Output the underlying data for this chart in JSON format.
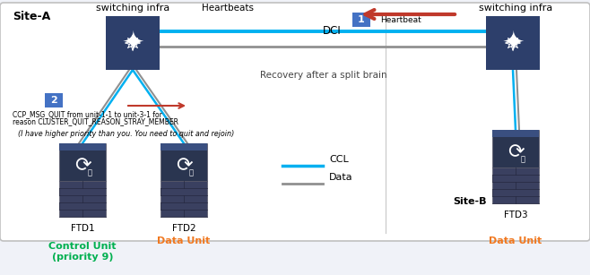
{
  "background": "#f0f2f8",
  "outer_box_color": "#c0c0c0",
  "site_a_label": "Site-A",
  "site_b_label": "Site-B",
  "sw_infra_label": "switching infra",
  "heartbeats_label": "Heartbeats",
  "dci_label": "DCI",
  "heartbeat_label": "Heartbeat",
  "recovery_label": "Recovery after a split brain",
  "ftd1_label": "FTD1",
  "ftd2_label": "FTD2",
  "ftd3_label": "FTD3",
  "control_unit_label": "Control Unit\n(priority 9)",
  "data_unit_label": "Data Unit",
  "ccl_label": "CCL",
  "data_label": "Data",
  "msg_line1": "CCP_MSG_QUIT from unit-1-1 to unit-3-1 for",
  "msg_line2": "reason CLUSTER_QUIT_REASON_STRAY_MEMBER",
  "priority_label": "(I have higher priority than you. You need to quit and rejoin)",
  "step1_color": "#4472c4",
  "step2_color": "#4472c4",
  "ccl_color": "#00b0f0",
  "data_color": "#909090",
  "arrow_color": "#c0392b",
  "sw_box_color": "#2d3f6b",
  "ftd_top_color": "#2a3550",
  "ftd_bot_color": "#3a4060",
  "ftd_brick_color": "#3c4060",
  "green_text": "#00b050",
  "orange_text": "#f07820",
  "black_text": "#000000",
  "gray_text": "#444444",
  "white": "#ffffff",
  "dci_line_color": "#c8c8c8"
}
